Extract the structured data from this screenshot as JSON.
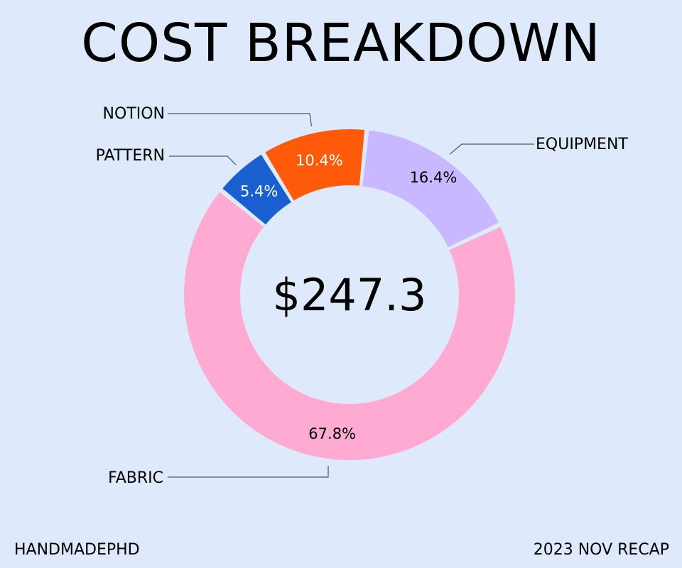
{
  "title": "COST BREAKDOWN",
  "footer": {
    "left": "HANDMADEPHD",
    "right": "2023 NOV RECAP"
  },
  "chart_data": {
    "type": "pie",
    "donut": true,
    "center_label": "$247.3",
    "slices": [
      {
        "label": "EQUIPMENT",
        "value": 16.4,
        "value_label": "16.4%",
        "color": "#c9b8ff",
        "text_color": "#000000"
      },
      {
        "label": "FABRIC",
        "value": 67.8,
        "value_label": "67.8%",
        "color": "#ffaad2",
        "text_color": "#000000"
      },
      {
        "label": "PATTERN",
        "value": 5.4,
        "value_label": "5.4%",
        "color": "#1a5fcf",
        "text_color": "#ffffff"
      },
      {
        "label": "NOTION",
        "value": 10.4,
        "value_label": "10.4%",
        "color": "#ff5a0a",
        "text_color": "#ffffff"
      }
    ]
  }
}
